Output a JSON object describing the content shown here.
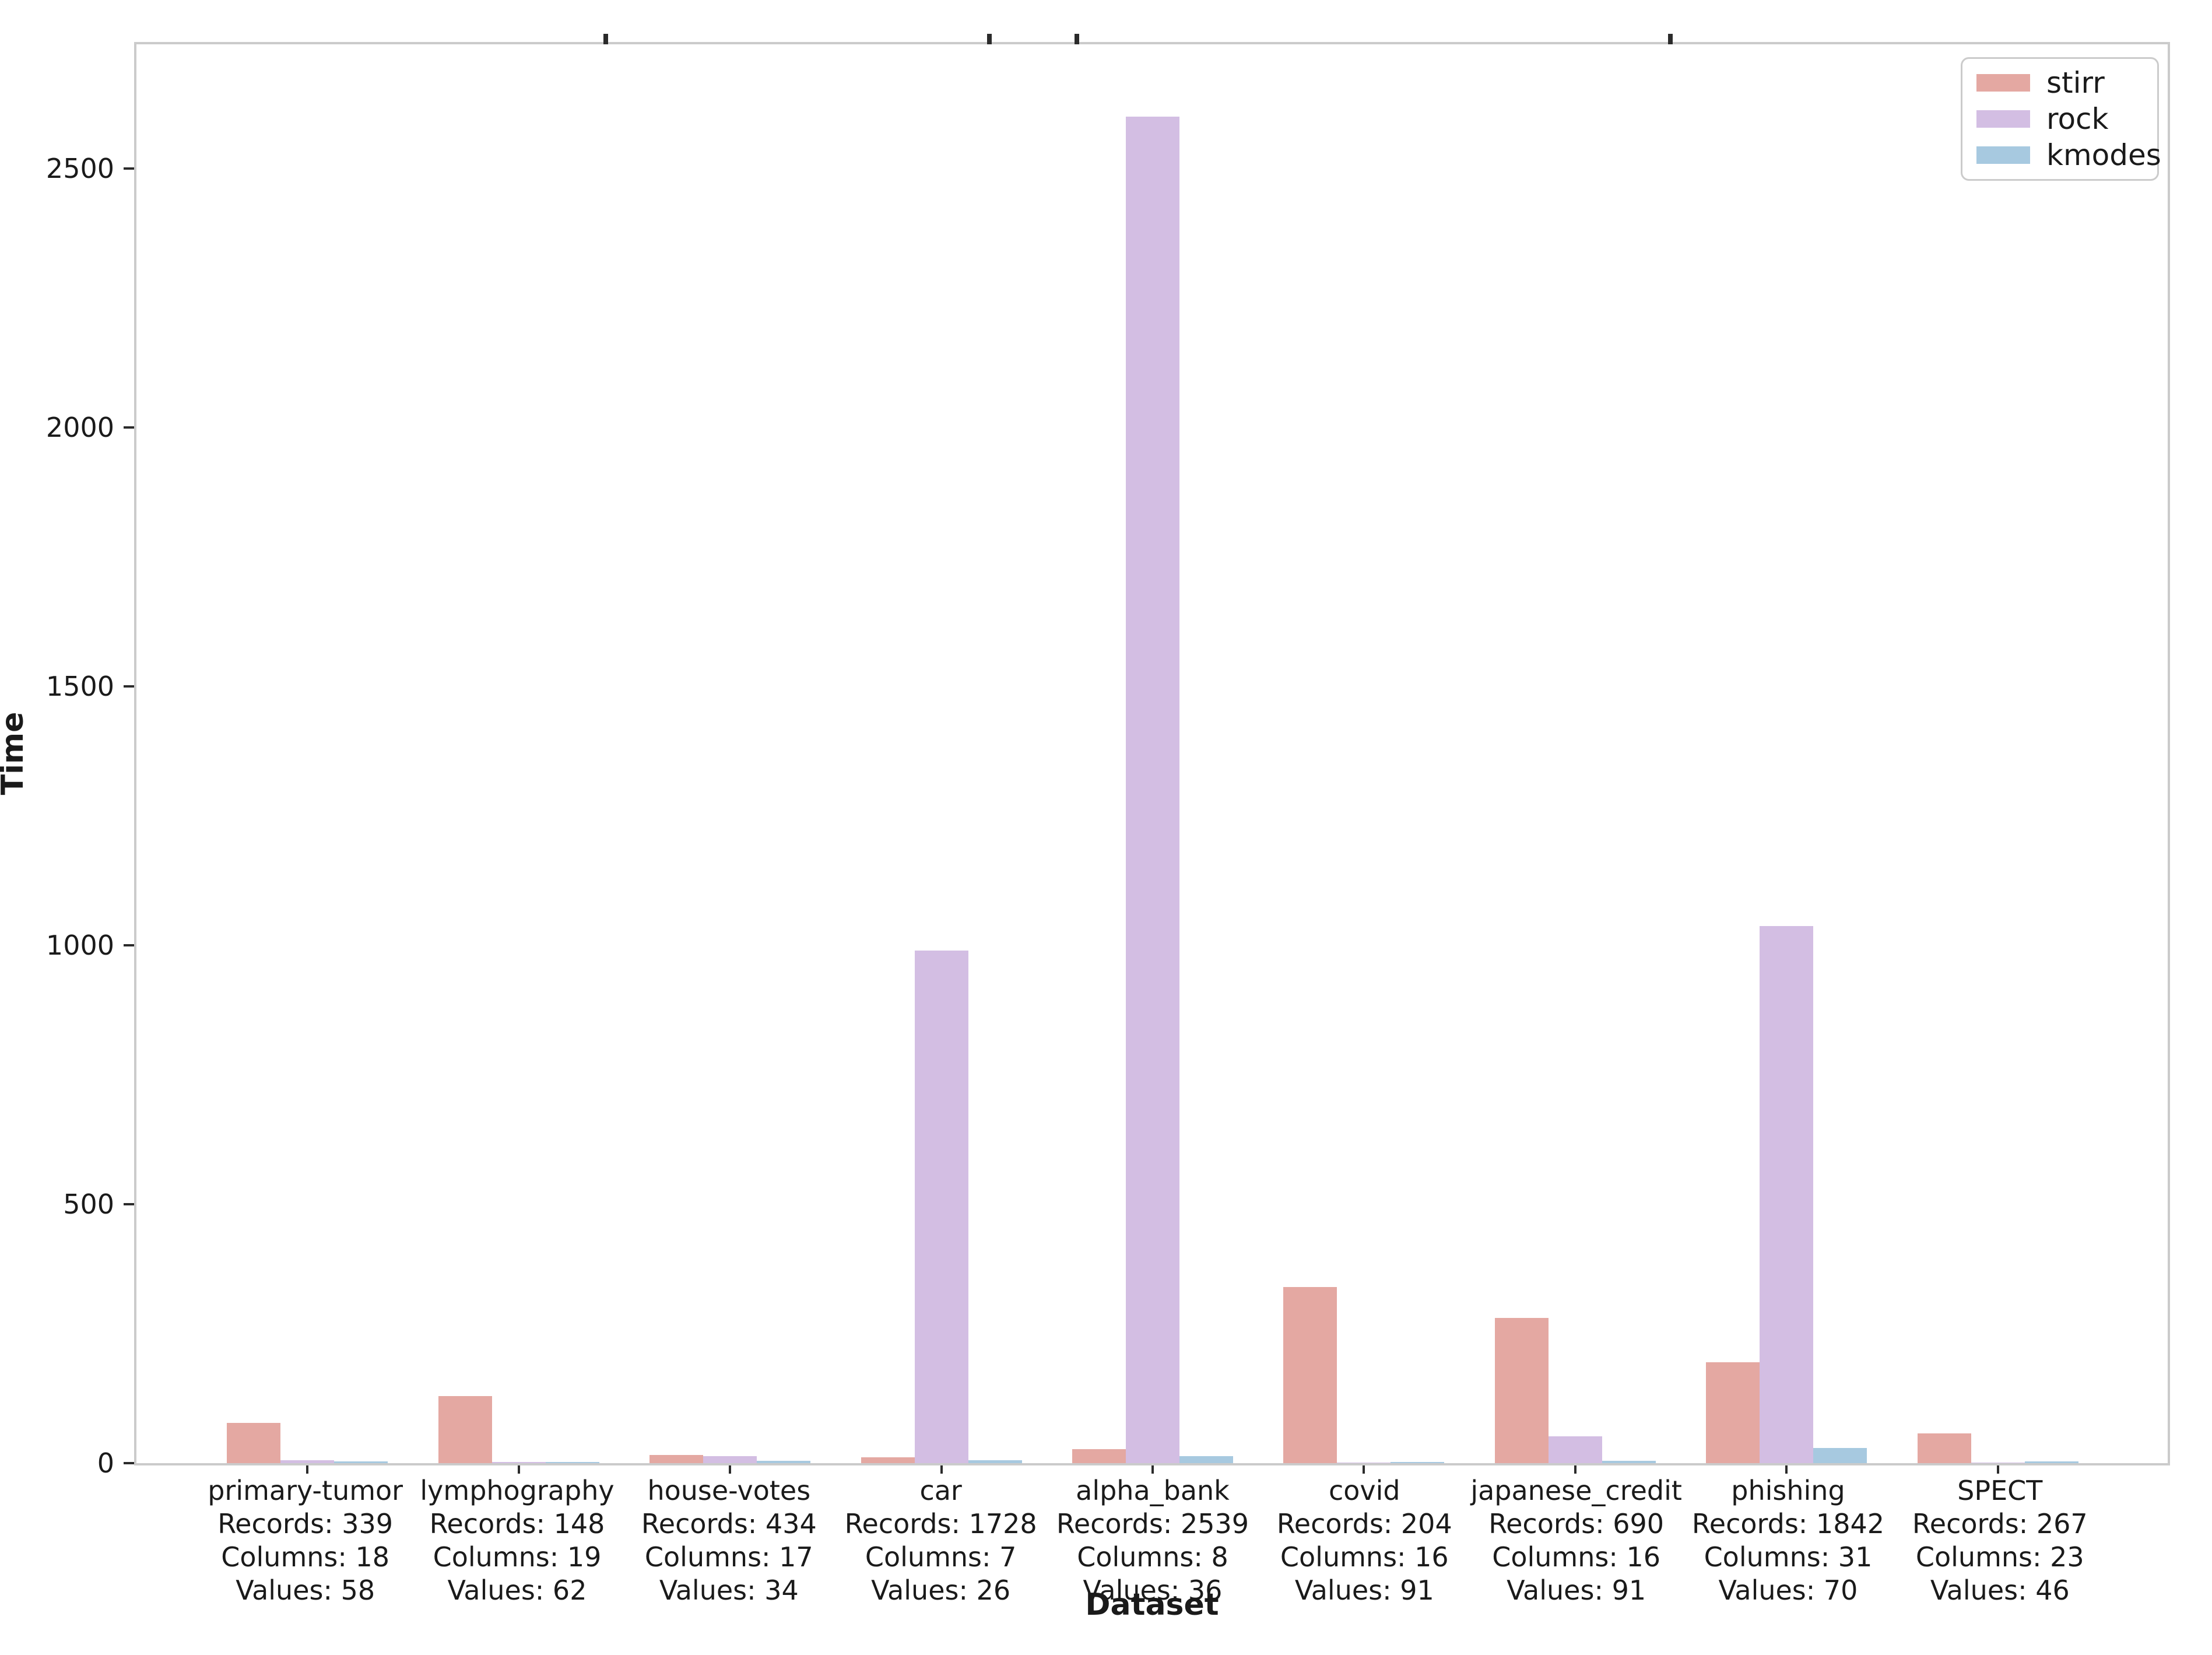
{
  "figure": {
    "background": "#ffffff"
  },
  "axes": {
    "ylabel": "Time",
    "xlabel": "Dataset",
    "x_sublabel_prefixes": {
      "records": "Records: ",
      "columns": "Columns: ",
      "values": "Values: "
    }
  },
  "clipped_title_descender_marks_x": [
    1035,
    1693,
    1843,
    2861
  ],
  "chart_data": {
    "type": "bar",
    "title": "",
    "xlabel": "Dataset",
    "ylabel": "Time",
    "ylim": [
      0,
      2740
    ],
    "yticks": [
      0,
      500,
      1000,
      1500,
      2000,
      2500
    ],
    "grid": false,
    "legend_position": "upper right",
    "categories": [
      {
        "label": "primary-tumor",
        "records": 339,
        "columns": 18,
        "values": 58
      },
      {
        "label": "lymphography",
        "records": 148,
        "columns": 19,
        "values": 62
      },
      {
        "label": "house-votes",
        "records": 434,
        "columns": 17,
        "values": 34
      },
      {
        "label": "car",
        "records": 1728,
        "columns": 7,
        "values": 26
      },
      {
        "label": "alpha_bank",
        "records": 2539,
        "columns": 8,
        "values": 36
      },
      {
        "label": "covid",
        "records": 204,
        "columns": 16,
        "values": 91
      },
      {
        "label": "japanese_credit",
        "records": 690,
        "columns": 16,
        "values": 91
      },
      {
        "label": "phishing",
        "records": 1842,
        "columns": 31,
        "values": 70
      },
      {
        "label": "SPECT",
        "records": 267,
        "columns": 23,
        "values": 46
      }
    ],
    "series": [
      {
        "name": "stirr",
        "color": "#e4a8a2",
        "values": [
          78,
          130,
          16,
          11,
          27,
          340,
          280,
          195,
          57
        ]
      },
      {
        "name": "rock",
        "color": "#d3bee3",
        "values": [
          6,
          2,
          13,
          990,
          2600,
          1,
          52,
          1037,
          1
        ]
      },
      {
        "name": "kmodes",
        "color": "#a7c9e0",
        "values": [
          3,
          2,
          4,
          6,
          13,
          2,
          5,
          29,
          3
        ]
      }
    ]
  }
}
